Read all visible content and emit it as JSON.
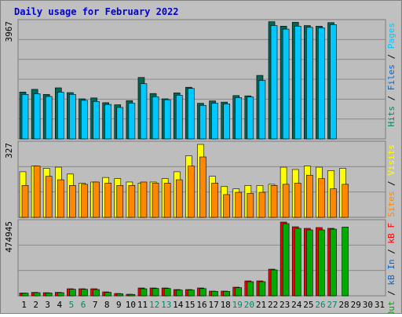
{
  "title": "Daily usage for February 2022",
  "colors": {
    "title": "#0000cc",
    "background": "#c0c0c0",
    "plot_bg": "#b8b8b8",
    "grid": "#888888",
    "pages": "#00c8ff",
    "files": "#006699",
    "hits": "#008866",
    "visits": "#ffff00",
    "sites": "#ff8800",
    "kb_in": "#0066cc",
    "kb_out": "#00aa00",
    "kbytes": "#ff0000",
    "weekend_day": "#008866"
  },
  "chart_data": [
    {
      "type": "bar",
      "name": "top",
      "ylabel": "Pages / Files / Hits",
      "legend": [
        {
          "text": "Pages",
          "color": "#00c8ff"
        },
        {
          "text": "Files",
          "color": "#0066cc"
        },
        {
          "text": "Hits",
          "color": "#008866"
        }
      ],
      "max_label": "3967",
      "ymax": 3967,
      "categories": [
        "1",
        "2",
        "3",
        "4",
        "5",
        "6",
        "7",
        "8",
        "9",
        "10",
        "11",
        "12",
        "13",
        "14",
        "15",
        "16",
        "17",
        "18",
        "19",
        "20",
        "21",
        "22",
        "23",
        "24",
        "25",
        "26",
        "27",
        "28",
        "29",
        "30",
        "31"
      ],
      "series": [
        {
          "name": "Hits",
          "color": "#006655",
          "values": [
            1580,
            1670,
            1500,
            1720,
            1560,
            1350,
            1380,
            1220,
            1150,
            1290,
            2070,
            1530,
            1350,
            1550,
            1740,
            1200,
            1280,
            1240,
            1460,
            1450,
            2140,
            3950,
            3800,
            3930,
            3820,
            3800,
            3920,
            0,
            0,
            0,
            0
          ]
        },
        {
          "name": "Files",
          "color": "#00c8ff",
          "values": [
            1500,
            1520,
            1430,
            1570,
            1500,
            1300,
            1260,
            1160,
            1060,
            1200,
            1860,
            1420,
            1320,
            1470,
            1700,
            1130,
            1200,
            1180,
            1390,
            1410,
            1970,
            3820,
            3700,
            3800,
            3760,
            3740,
            3850,
            0,
            0,
            0,
            0
          ]
        }
      ]
    },
    {
      "type": "bar",
      "name": "middle",
      "ylabel": "Visits / Sites",
      "legend": [
        {
          "text": "Visits",
          "color": "#ffff00"
        },
        {
          "text": "Sites",
          "color": "#ff8800"
        }
      ],
      "max_label": "327",
      "ymax": 327,
      "categories": [
        "1",
        "2",
        "3",
        "4",
        "5",
        "6",
        "7",
        "8",
        "9",
        "10",
        "11",
        "12",
        "13",
        "14",
        "15",
        "16",
        "17",
        "18",
        "19",
        "20",
        "21",
        "22",
        "23",
        "24",
        "25",
        "26",
        "27",
        "28",
        "29",
        "30",
        "31"
      ],
      "series": [
        {
          "name": "Visits",
          "color": "#ffff00",
          "values": [
            200,
            225,
            215,
            220,
            190,
            150,
            155,
            175,
            170,
            155,
            150,
            155,
            170,
            200,
            270,
            320,
            180,
            135,
            125,
            140,
            140,
            145,
            220,
            210,
            225,
            220,
            205,
            215,
            0,
            0,
            0
          ]
        },
        {
          "name": "Sites",
          "color": "#ff8800",
          "values": [
            140,
            225,
            180,
            165,
            140,
            145,
            155,
            150,
            140,
            140,
            155,
            150,
            150,
            165,
            225,
            265,
            150,
            100,
            110,
            105,
            110,
            140,
            145,
            150,
            185,
            170,
            125,
            145,
            0,
            0,
            0
          ]
        }
      ]
    },
    {
      "type": "bar",
      "name": "bottom",
      "ylabel": "kB In / kB Out / kB F",
      "legend": [
        {
          "text": "kB F",
          "color": "#ff0000"
        },
        {
          "text": "kB In",
          "color": "#0066cc"
        },
        {
          "text": "kB Out",
          "color": "#00aa00"
        }
      ],
      "max_label": "474945",
      "ymax": 474945,
      "categories": [
        "1",
        "2",
        "3",
        "4",
        "5",
        "6",
        "7",
        "8",
        "9",
        "10",
        "11",
        "12",
        "13",
        "14",
        "15",
        "16",
        "17",
        "18",
        "19",
        "20",
        "21",
        "22",
        "23",
        "24",
        "25",
        "26",
        "27",
        "28",
        "29",
        "30",
        "31"
      ],
      "series": [
        {
          "name": "kB F",
          "color": "#ff0000",
          "values": [
            18000,
            22000,
            20000,
            22000,
            45000,
            45000,
            45000,
            25000,
            15000,
            10000,
            50000,
            50000,
            50000,
            40000,
            40000,
            50000,
            30000,
            30000,
            55000,
            95000,
            95000,
            170000,
            470000,
            440000,
            430000,
            435000,
            430000,
            0,
            0,
            0,
            0
          ]
        },
        {
          "name": "kB Out",
          "color": "#00aa00",
          "values": [
            17000,
            20000,
            18000,
            20000,
            42000,
            42000,
            40000,
            22000,
            13000,
            9000,
            45000,
            47000,
            47000,
            37000,
            37000,
            46000,
            28000,
            28000,
            52000,
            90000,
            90000,
            165000,
            460000,
            430000,
            420000,
            420000,
            425000,
            438000,
            0,
            0,
            0
          ]
        }
      ]
    }
  ],
  "x_labels": [
    {
      "text": "1",
      "weekend": false
    },
    {
      "text": "2",
      "weekend": false
    },
    {
      "text": "3",
      "weekend": false
    },
    {
      "text": "4",
      "weekend": false
    },
    {
      "text": "5",
      "weekend": true
    },
    {
      "text": "6",
      "weekend": true
    },
    {
      "text": "7",
      "weekend": false
    },
    {
      "text": "8",
      "weekend": false
    },
    {
      "text": "9",
      "weekend": false
    },
    {
      "text": "10",
      "weekend": false
    },
    {
      "text": "11",
      "weekend": false
    },
    {
      "text": "12",
      "weekend": true
    },
    {
      "text": "13",
      "weekend": true
    },
    {
      "text": "14",
      "weekend": false
    },
    {
      "text": "15",
      "weekend": false
    },
    {
      "text": "16",
      "weekend": false
    },
    {
      "text": "17",
      "weekend": false
    },
    {
      "text": "18",
      "weekend": false
    },
    {
      "text": "19",
      "weekend": true
    },
    {
      "text": "20",
      "weekend": true
    },
    {
      "text": "21",
      "weekend": false
    },
    {
      "text": "22",
      "weekend": false
    },
    {
      "text": "23",
      "weekend": false
    },
    {
      "text": "24",
      "weekend": false
    },
    {
      "text": "25",
      "weekend": false
    },
    {
      "text": "26",
      "weekend": true
    },
    {
      "text": "27",
      "weekend": true
    },
    {
      "text": "28",
      "weekend": false
    },
    {
      "text": "29",
      "weekend": false
    },
    {
      "text": "30",
      "weekend": false
    },
    {
      "text": "31",
      "weekend": false
    }
  ]
}
